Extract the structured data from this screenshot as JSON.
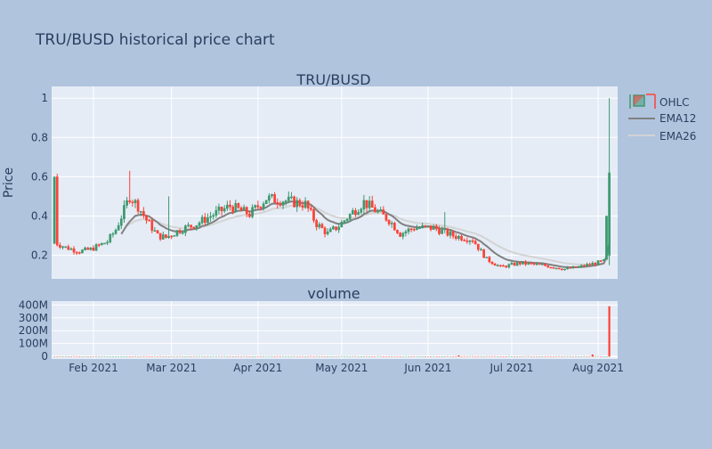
{
  "page_title": "TRU/BUSD historical price chart",
  "price_panel": {
    "title": "TRU/BUSD",
    "ylabel": "Price"
  },
  "volume_panel": {
    "title": "volume"
  },
  "legend": {
    "ohlc": "OHLC",
    "ema12": "EMA12",
    "ema26": "EMA26"
  },
  "colors": {
    "background": "#b0c4de",
    "plot_bg": "#e5ecf6",
    "grid": "#ffffff",
    "up": "#3d9970",
    "down": "#ff4136",
    "ema12": "#808080",
    "ema26": "#d3d3d3",
    "text": "#2a3f5f"
  },
  "chart_data": [
    {
      "type": "candlestick",
      "title": "TRU/BUSD",
      "ylabel": "Price",
      "ylim": [
        0.08,
        1.06
      ],
      "yticks": [
        0.2,
        0.4,
        0.6,
        0.8,
        1
      ],
      "ytick_labels": [
        "0.2",
        "0.4",
        "0.6",
        "0.8",
        "1"
      ],
      "xrange": [
        "2021-01-17",
        "2021-08-08"
      ],
      "x_ticks": [
        "2021-02-01",
        "2021-03-01",
        "2021-04-01",
        "2021-05-01",
        "2021-06-01",
        "2021-07-01",
        "2021-08-01"
      ],
      "x_tick_labels": [
        "Feb 2021",
        "Mar 2021",
        "Apr 2021",
        "May 2021",
        "Jun 2021",
        "Jul 2021",
        "Aug 2021"
      ],
      "legend_position": "top-right",
      "grid": true,
      "ohlc_anchors": [
        [
          "2021-01-19",
          0.26
        ],
        [
          "2021-01-22",
          0.24
        ],
        [
          "2021-01-27",
          0.22
        ],
        [
          "2021-01-31",
          0.23
        ],
        [
          "2021-02-06",
          0.27
        ],
        [
          "2021-02-09",
          0.33
        ],
        [
          "2021-02-12",
          0.43
        ],
        [
          "2021-02-14",
          0.5
        ],
        [
          "2021-02-17",
          0.45
        ],
        [
          "2021-02-20",
          0.38
        ],
        [
          "2021-02-24",
          0.3
        ],
        [
          "2021-02-27",
          0.29
        ],
        [
          "2021-03-04",
          0.33
        ],
        [
          "2021-03-10",
          0.36
        ],
        [
          "2021-03-15",
          0.4
        ],
        [
          "2021-03-22",
          0.45
        ],
        [
          "2021-03-29",
          0.41
        ],
        [
          "2021-04-04",
          0.49
        ],
        [
          "2021-04-10",
          0.48
        ],
        [
          "2021-04-18",
          0.46
        ],
        [
          "2021-04-22",
          0.36
        ],
        [
          "2021-04-26",
          0.31
        ],
        [
          "2021-04-30",
          0.35
        ],
        [
          "2021-05-05",
          0.42
        ],
        [
          "2021-05-09",
          0.47
        ],
        [
          "2021-05-14",
          0.42
        ],
        [
          "2021-05-18",
          0.38
        ],
        [
          "2021-05-22",
          0.31
        ],
        [
          "2021-05-27",
          0.34
        ],
        [
          "2021-06-03",
          0.34
        ],
        [
          "2021-06-10",
          0.3
        ],
        [
          "2021-06-17",
          0.28
        ],
        [
          "2021-06-22",
          0.18
        ],
        [
          "2021-06-27",
          0.14
        ],
        [
          "2021-07-04",
          0.16
        ],
        [
          "2021-07-12",
          0.15
        ],
        [
          "2021-07-20",
          0.13
        ],
        [
          "2021-07-25",
          0.14
        ],
        [
          "2021-07-31",
          0.16
        ],
        [
          "2021-08-03",
          0.17
        ],
        [
          "2021-08-05",
          0.6
        ]
      ],
      "ema_start": {
        "ema12": "2021-02-11",
        "ema26": "2021-02-13"
      },
      "spikes": [
        {
          "date": "2021-01-18",
          "high": 0.38
        },
        {
          "date": "2021-02-14",
          "high": 0.63
        },
        {
          "date": "2021-02-28",
          "high": 0.5
        },
        {
          "date": "2021-06-07",
          "high": 0.42
        },
        {
          "date": "2021-08-05",
          "high": 1.0,
          "low": 0.15,
          "open": 0.2,
          "close": 0.62
        }
      ]
    },
    {
      "type": "bar",
      "title": "volume",
      "ylim": [
        -20000000,
        430000000
      ],
      "yticks": [
        0,
        100000000,
        200000000,
        300000000,
        400000000
      ],
      "ytick_labels": [
        "0",
        "100M",
        "200M",
        "300M",
        "400M"
      ],
      "big_bars": [
        {
          "date": "2021-06-12",
          "value": 8000000
        },
        {
          "date": "2021-07-30",
          "value": 15000000
        },
        {
          "date": "2021-08-05",
          "value": 390000000
        }
      ]
    }
  ]
}
